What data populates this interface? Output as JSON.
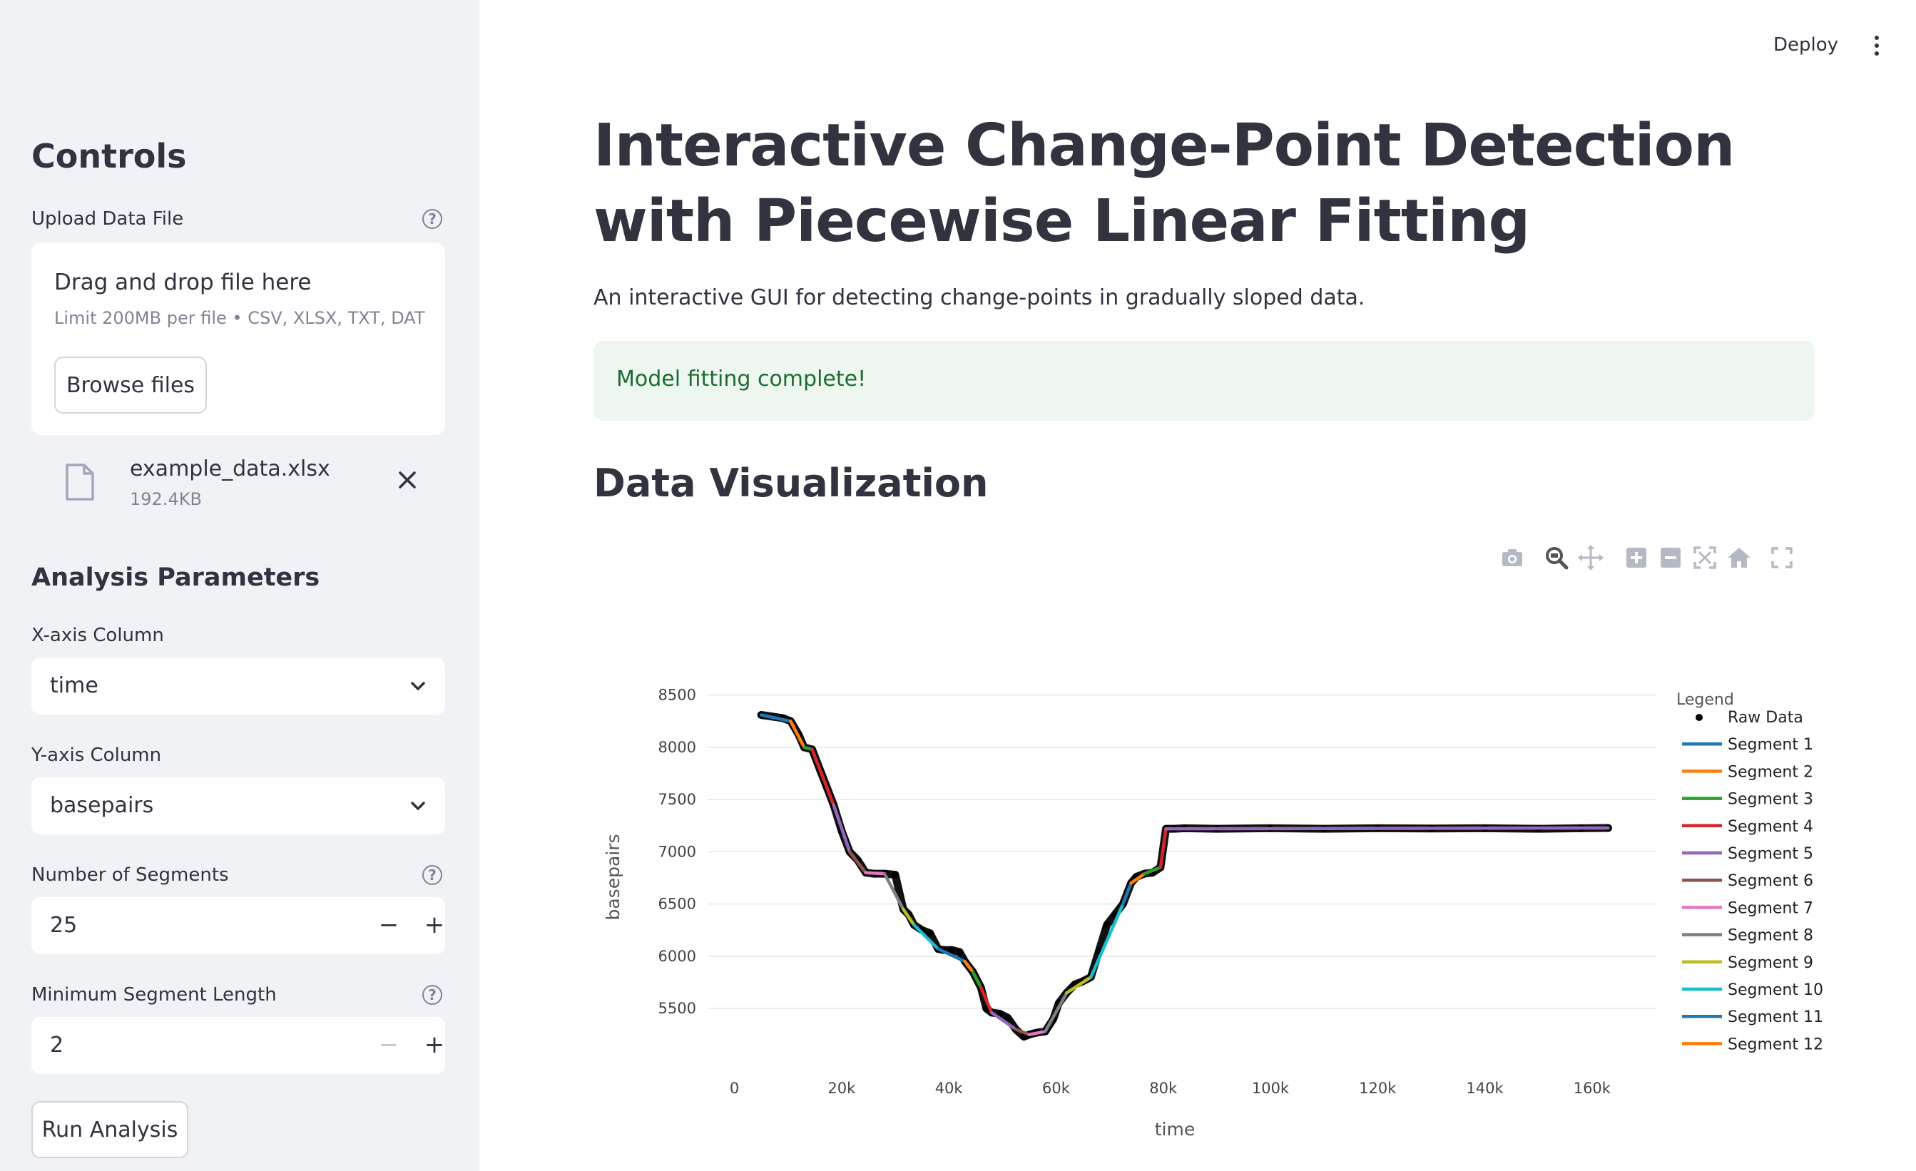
{
  "sidebar": {
    "controls_heading": "Controls",
    "upload": {
      "label": "Upload Data File",
      "drop_text": "Drag and drop file here",
      "limit_text": "Limit 200MB per file • CSV, XLSX, TXT, DAT",
      "browse_label": "Browse files",
      "file_name": "example_data.xlsx",
      "file_size": "192.4KB"
    },
    "analysis_heading": "Analysis Parameters",
    "x_axis": {
      "label": "X-axis Column",
      "value": "time"
    },
    "y_axis": {
      "label": "Y-axis Column",
      "value": "basepairs"
    },
    "segments": {
      "label": "Number of Segments",
      "value": "25"
    },
    "min_len": {
      "label": "Minimum Segment Length",
      "value": "2"
    },
    "run_label": "Run Analysis"
  },
  "header": {
    "deploy_label": "Deploy"
  },
  "main": {
    "title": "Interactive Change-Point Detection with Piecewise Linear Fitting",
    "subtitle": "An interactive GUI for detecting change-points in gradually sloped data.",
    "alert": "Model fitting complete!",
    "section": "Data Visualization"
  },
  "modebar_icons": [
    "camera-icon",
    "zoom-icon",
    "pan-icon",
    "zoom-in-icon",
    "zoom-out-icon",
    "autoscale-icon",
    "reset-axes-icon",
    "fullscreen-icon"
  ],
  "chart_data": {
    "type": "line",
    "xlabel": "time",
    "ylabel": "basepairs",
    "xlim": [
      -5000,
      172000
    ],
    "ylim": [
      5050,
      8600
    ],
    "x_ticks": [
      0,
      20000,
      40000,
      60000,
      80000,
      100000,
      120000,
      140000,
      160000
    ],
    "x_tick_labels": [
      "0",
      "20k",
      "40k",
      "60k",
      "80k",
      "100k",
      "120k",
      "140k",
      "160k"
    ],
    "y_ticks": [
      5500,
      6000,
      6500,
      7000,
      7500,
      8000,
      8500
    ],
    "y_tick_labels": [
      "5500",
      "6000",
      "6500",
      "7000",
      "7500",
      "8000",
      "8500"
    ],
    "legend_title": "Legend",
    "legend_position": "right",
    "raw_data_name": "Raw Data",
    "raw_data": {
      "x": [
        5000,
        9000,
        10500,
        12000,
        13000,
        14500,
        16000,
        17000,
        18500,
        20000,
        21500,
        23000,
        24500,
        26000,
        28000,
        30000,
        31500,
        32500,
        33500,
        35000,
        36500,
        38000,
        39000,
        40500,
        42000,
        43000,
        44500,
        46000,
        47000,
        48000,
        49500,
        51000,
        52500,
        54000,
        55000,
        56500,
        58000,
        59500,
        60500,
        62000,
        63500,
        65000,
        66500,
        68000,
        69500,
        71000,
        72500,
        74000,
        75000,
        76500,
        78000,
        79500,
        80500,
        82000,
        84000,
        90000,
        100000,
        110000,
        120000,
        130000,
        140000,
        150000,
        158000,
        163000
      ],
      "y": [
        8310,
        8280,
        8250,
        8120,
        8000,
        7980,
        7780,
        7650,
        7450,
        7200,
        7000,
        6920,
        6800,
        6790,
        6790,
        6780,
        6450,
        6400,
        6300,
        6250,
        6220,
        6070,
        6060,
        6060,
        6040,
        5950,
        5850,
        5700,
        5500,
        5460,
        5450,
        5410,
        5300,
        5230,
        5250,
        5270,
        5280,
        5400,
        5550,
        5650,
        5730,
        5760,
        5800,
        6050,
        6300,
        6400,
        6500,
        6700,
        6760,
        6790,
        6800,
        6850,
        7220,
        7220,
        7225,
        7220,
        7225,
        7220,
        7225,
        7222,
        7225,
        7220,
        7225,
        7228
      ]
    },
    "series": [
      {
        "name": "Segment 1",
        "color": "#1f77b4",
        "x": [
          5000,
          10500
        ],
        "y": [
          8310,
          8250
        ]
      },
      {
        "name": "Segment 2",
        "color": "#ff7f0e",
        "x": [
          10500,
          13000
        ],
        "y": [
          8250,
          8000
        ]
      },
      {
        "name": "Segment 3",
        "color": "#2ca02c",
        "x": [
          13000,
          14500
        ],
        "y": [
          8000,
          7980
        ]
      },
      {
        "name": "Segment 4",
        "color": "#d62728",
        "x": [
          14500,
          18500
        ],
        "y": [
          7980,
          7450
        ]
      },
      {
        "name": "Segment 5",
        "color": "#9467bd",
        "x": [
          18500,
          21500
        ],
        "y": [
          7450,
          7000
        ]
      },
      {
        "name": "Segment 6",
        "color": "#8c564b",
        "x": [
          21500,
          24500
        ],
        "y": [
          7000,
          6800
        ]
      },
      {
        "name": "Segment 7",
        "color": "#e377c2",
        "x": [
          24500,
          28000
        ],
        "y": [
          6800,
          6790
        ]
      },
      {
        "name": "Segment 8",
        "color": "#7f7f7f",
        "x": [
          28000,
          31500
        ],
        "y": [
          6790,
          6450
        ]
      },
      {
        "name": "Segment 9",
        "color": "#bcbd22",
        "x": [
          31500,
          33500
        ],
        "y": [
          6450,
          6300
        ]
      },
      {
        "name": "Segment 10",
        "color": "#17becf",
        "x": [
          33500,
          38000
        ],
        "y": [
          6300,
          6070
        ]
      },
      {
        "name": "Segment 11",
        "color": "#1f77b4",
        "x": [
          38000,
          43000
        ],
        "y": [
          6070,
          5950
        ]
      },
      {
        "name": "Segment 12",
        "color": "#ff7f0e",
        "x": [
          43000,
          44500
        ],
        "y": [
          5950,
          5850
        ]
      },
      {
        "color": "#2ca02c",
        "x": [
          44500,
          46000
        ],
        "y": [
          5850,
          5700
        ]
      },
      {
        "color": "#d62728",
        "x": [
          46000,
          48000
        ],
        "y": [
          5700,
          5460
        ]
      },
      {
        "color": "#9467bd",
        "x": [
          48000,
          52500
        ],
        "y": [
          5460,
          5300
        ]
      },
      {
        "color": "#8c564b",
        "x": [
          52500,
          55000
        ],
        "y": [
          5300,
          5250
        ]
      },
      {
        "color": "#e377c2",
        "x": [
          55000,
          58000
        ],
        "y": [
          5250,
          5280
        ]
      },
      {
        "color": "#7f7f7f",
        "x": [
          58000,
          62000
        ],
        "y": [
          5280,
          5650
        ]
      },
      {
        "color": "#bcbd22",
        "x": [
          62000,
          66500
        ],
        "y": [
          5650,
          5800
        ]
      },
      {
        "color": "#17becf",
        "x": [
          66500,
          72500
        ],
        "y": [
          5800,
          6500
        ]
      },
      {
        "color": "#1f77b4",
        "x": [
          72500,
          74000
        ],
        "y": [
          6500,
          6700
        ]
      },
      {
        "color": "#ff7f0e",
        "x": [
          74000,
          76500
        ],
        "y": [
          6700,
          6790
        ]
      },
      {
        "color": "#2ca02c",
        "x": [
          76500,
          79500
        ],
        "y": [
          6790,
          6850
        ]
      },
      {
        "color": "#d62728",
        "x": [
          79500,
          80500
        ],
        "y": [
          6850,
          7220
        ]
      },
      {
        "color": "#9467bd",
        "x": [
          80500,
          163000
        ],
        "y": [
          7220,
          7228
        ]
      }
    ],
    "legend_entries": [
      "Segment 1",
      "Segment 2",
      "Segment 3",
      "Segment 4",
      "Segment 5",
      "Segment 6",
      "Segment 7",
      "Segment 8",
      "Segment 9",
      "Segment 10",
      "Segment 11",
      "Segment 12"
    ],
    "grid": true
  }
}
